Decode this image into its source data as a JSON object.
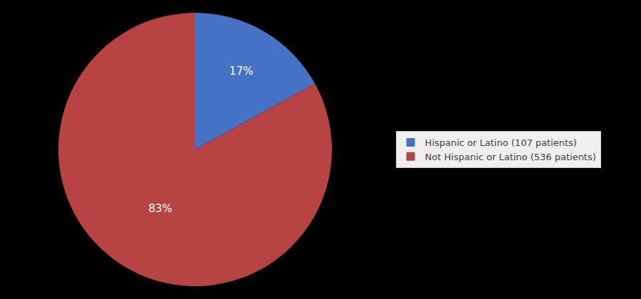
{
  "chart_data": {
    "type": "pie",
    "categories": [
      "Hispanic or Latino (107 patients)",
      "Not Hispanic or Latino (536 patients)"
    ],
    "values": [
      17,
      83
    ],
    "value_labels": [
      "17%",
      "83%"
    ],
    "colors": [
      "#4472C4",
      "#B84343"
    ],
    "data_labels": true,
    "legend": "right"
  }
}
